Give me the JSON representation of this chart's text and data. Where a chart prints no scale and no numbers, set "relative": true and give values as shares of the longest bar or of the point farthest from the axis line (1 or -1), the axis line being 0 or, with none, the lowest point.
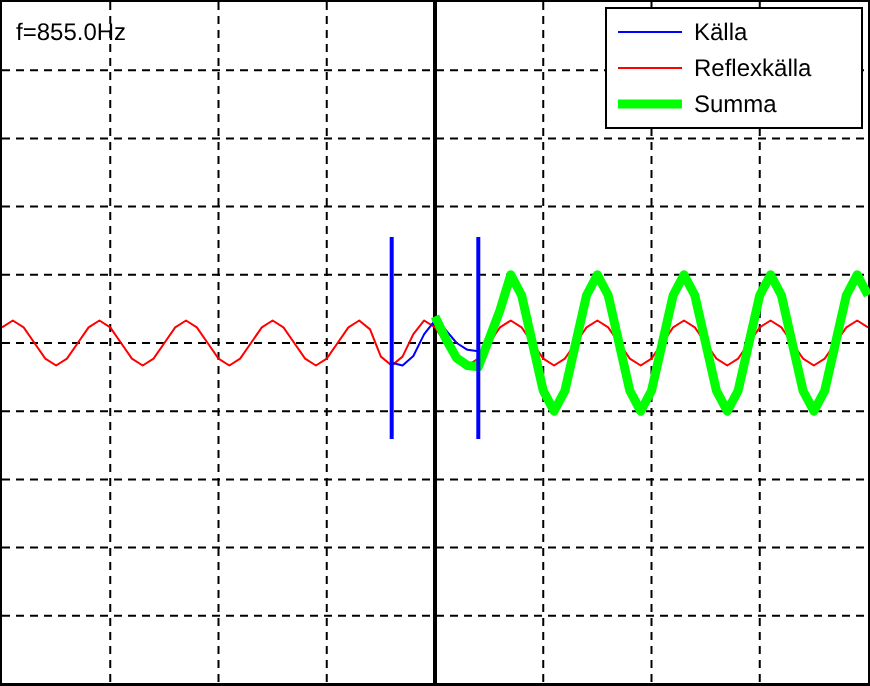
{
  "chart_data": {
    "type": "line",
    "relative": true,
    "annotations": [
      "f=855.0Hz"
    ],
    "categories": [
      null,
      null,
      null,
      null,
      null,
      null,
      null,
      null,
      null,
      null,
      null,
      null,
      null,
      null,
      null,
      null,
      null,
      null,
      null,
      null,
      null,
      null,
      null,
      null,
      null,
      null,
      null,
      null,
      null,
      null,
      null,
      null,
      null,
      null,
      null,
      null,
      null,
      null,
      null,
      null,
      null,
      null,
      null,
      null,
      null,
      null,
      null,
      null,
      null,
      null,
      null,
      null,
      null,
      null,
      null,
      null,
      null,
      null,
      null,
      null,
      null,
      null,
      null,
      null,
      null,
      null,
      null,
      null,
      null,
      null,
      null,
      null,
      null,
      null,
      null,
      null,
      null,
      null,
      null,
      null,
      null
    ],
    "grid": true,
    "legend": "top right",
    "series": [
      {
        "name": "Källa",
        "color": "#0000ff",
        "values": [
          null,
          null,
          null,
          null,
          null,
          null,
          null,
          null,
          null,
          null,
          null,
          null,
          null,
          null,
          null,
          null,
          null,
          null,
          null,
          null,
          null,
          null,
          null,
          null,
          null,
          null,
          null,
          null,
          null,
          null,
          null,
          null,
          null,
          null,
          null,
          null,
          -0.29,
          -0.33,
          -0.19,
          0.13,
          0.33,
          0.19,
          0,
          -0.1,
          -0.12,
          null,
          null,
          null,
          null,
          null,
          null,
          null,
          null,
          null,
          null,
          null,
          null,
          null,
          null,
          null,
          null,
          null,
          null,
          null,
          null,
          null,
          null,
          null,
          null,
          null,
          null,
          null,
          null,
          null,
          null,
          null,
          null,
          null,
          null,
          null,
          null
        ]
      },
      {
        "name": "Reflexkälla",
        "color": "#ff0000",
        "values": [
          0.23,
          0.33,
          0.23,
          0,
          -0.23,
          -0.33,
          -0.23,
          0,
          0.23,
          0.33,
          0.23,
          0,
          -0.23,
          -0.33,
          -0.23,
          0,
          0.23,
          0.33,
          0.23,
          0,
          -0.23,
          -0.33,
          -0.23,
          0,
          0.23,
          0.33,
          0.23,
          0,
          -0.23,
          -0.33,
          -0.23,
          0,
          0.23,
          0.33,
          0.2,
          -0.2,
          -0.33,
          -0.2,
          0.13,
          0.33,
          0.23,
          0,
          null,
          -0.33,
          -0.23,
          0,
          0.23,
          0.33,
          0.23,
          0,
          -0.23,
          -0.33,
          -0.23,
          0,
          0.23,
          0.33,
          0.23,
          0,
          -0.23,
          -0.33,
          -0.23,
          0,
          0.23,
          0.33,
          0.23,
          0,
          -0.23,
          -0.33,
          -0.23,
          0,
          0.23,
          0.33,
          0.23,
          0,
          -0.23,
          -0.33,
          -0.23,
          0,
          0.23,
          0.33,
          0.23
        ]
      },
      {
        "name": "Summa",
        "color": "#00ff00",
        "values": [
          null,
          null,
          null,
          null,
          null,
          null,
          null,
          null,
          null,
          null,
          null,
          null,
          null,
          null,
          null,
          null,
          null,
          null,
          null,
          null,
          null,
          null,
          null,
          null,
          null,
          null,
          null,
          null,
          null,
          null,
          null,
          null,
          null,
          null,
          null,
          null,
          null,
          null,
          null,
          null,
          0.39,
          0.06,
          -0.22,
          -0.33,
          -0.35,
          0.06,
          0.48,
          1,
          0.7,
          0,
          -0.7,
          -1,
          -0.7,
          0,
          0.7,
          1,
          0.7,
          0,
          -0.7,
          -1,
          -0.7,
          0,
          0.7,
          1,
          0.7,
          0,
          -0.7,
          -1,
          -0.7,
          0,
          0.7,
          1,
          0.7,
          0,
          -0.7,
          -1,
          -0.7,
          0,
          0.7,
          1,
          0.7
        ]
      }
    ]
  }
}
